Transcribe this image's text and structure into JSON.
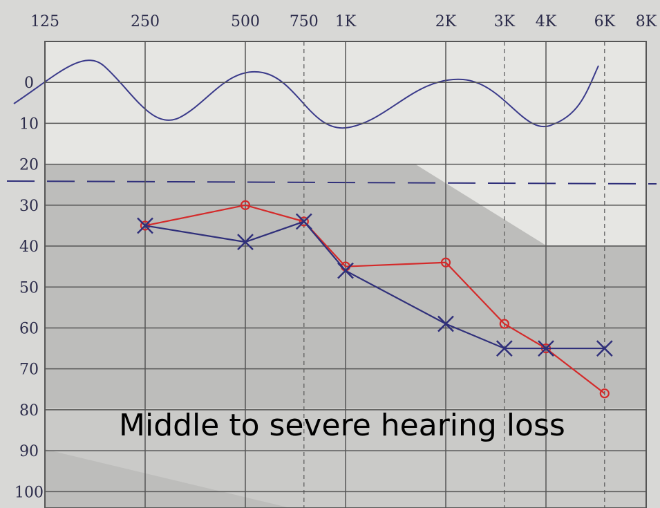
{
  "chart_data": {
    "type": "line",
    "xscale": "log",
    "annotation": "Middle to severe hearing loss",
    "x": [
      250,
      500,
      750,
      1000,
      2000,
      3000,
      4000,
      6000
    ],
    "xlim": [
      125,
      8000
    ],
    "xticks": [
      125,
      250,
      500,
      750,
      {
        "value": 1000,
        "label": "1K"
      },
      {
        "value": 2000,
        "label": "2K"
      },
      {
        "value": 3000,
        "label": "3K"
      },
      {
        "value": 4000,
        "label": "4K"
      },
      {
        "value": 6000,
        "label": "6K"
      },
      {
        "value": 8000,
        "label": "8K"
      }
    ],
    "ylim": [
      104,
      -10
    ],
    "yticks": [
      0,
      10,
      20,
      30,
      40,
      50,
      60,
      70,
      80,
      90,
      100
    ],
    "grid": true,
    "series": [
      {
        "color": "#d42a2a",
        "marker": "o",
        "values": [
          35,
          30,
          34,
          45,
          44,
          59,
          65,
          76
        ]
      },
      {
        "color": "#2f2f7a",
        "marker": "x",
        "values": [
          35,
          39,
          34,
          46,
          59,
          65,
          65,
          65
        ]
      }
    ]
  }
}
